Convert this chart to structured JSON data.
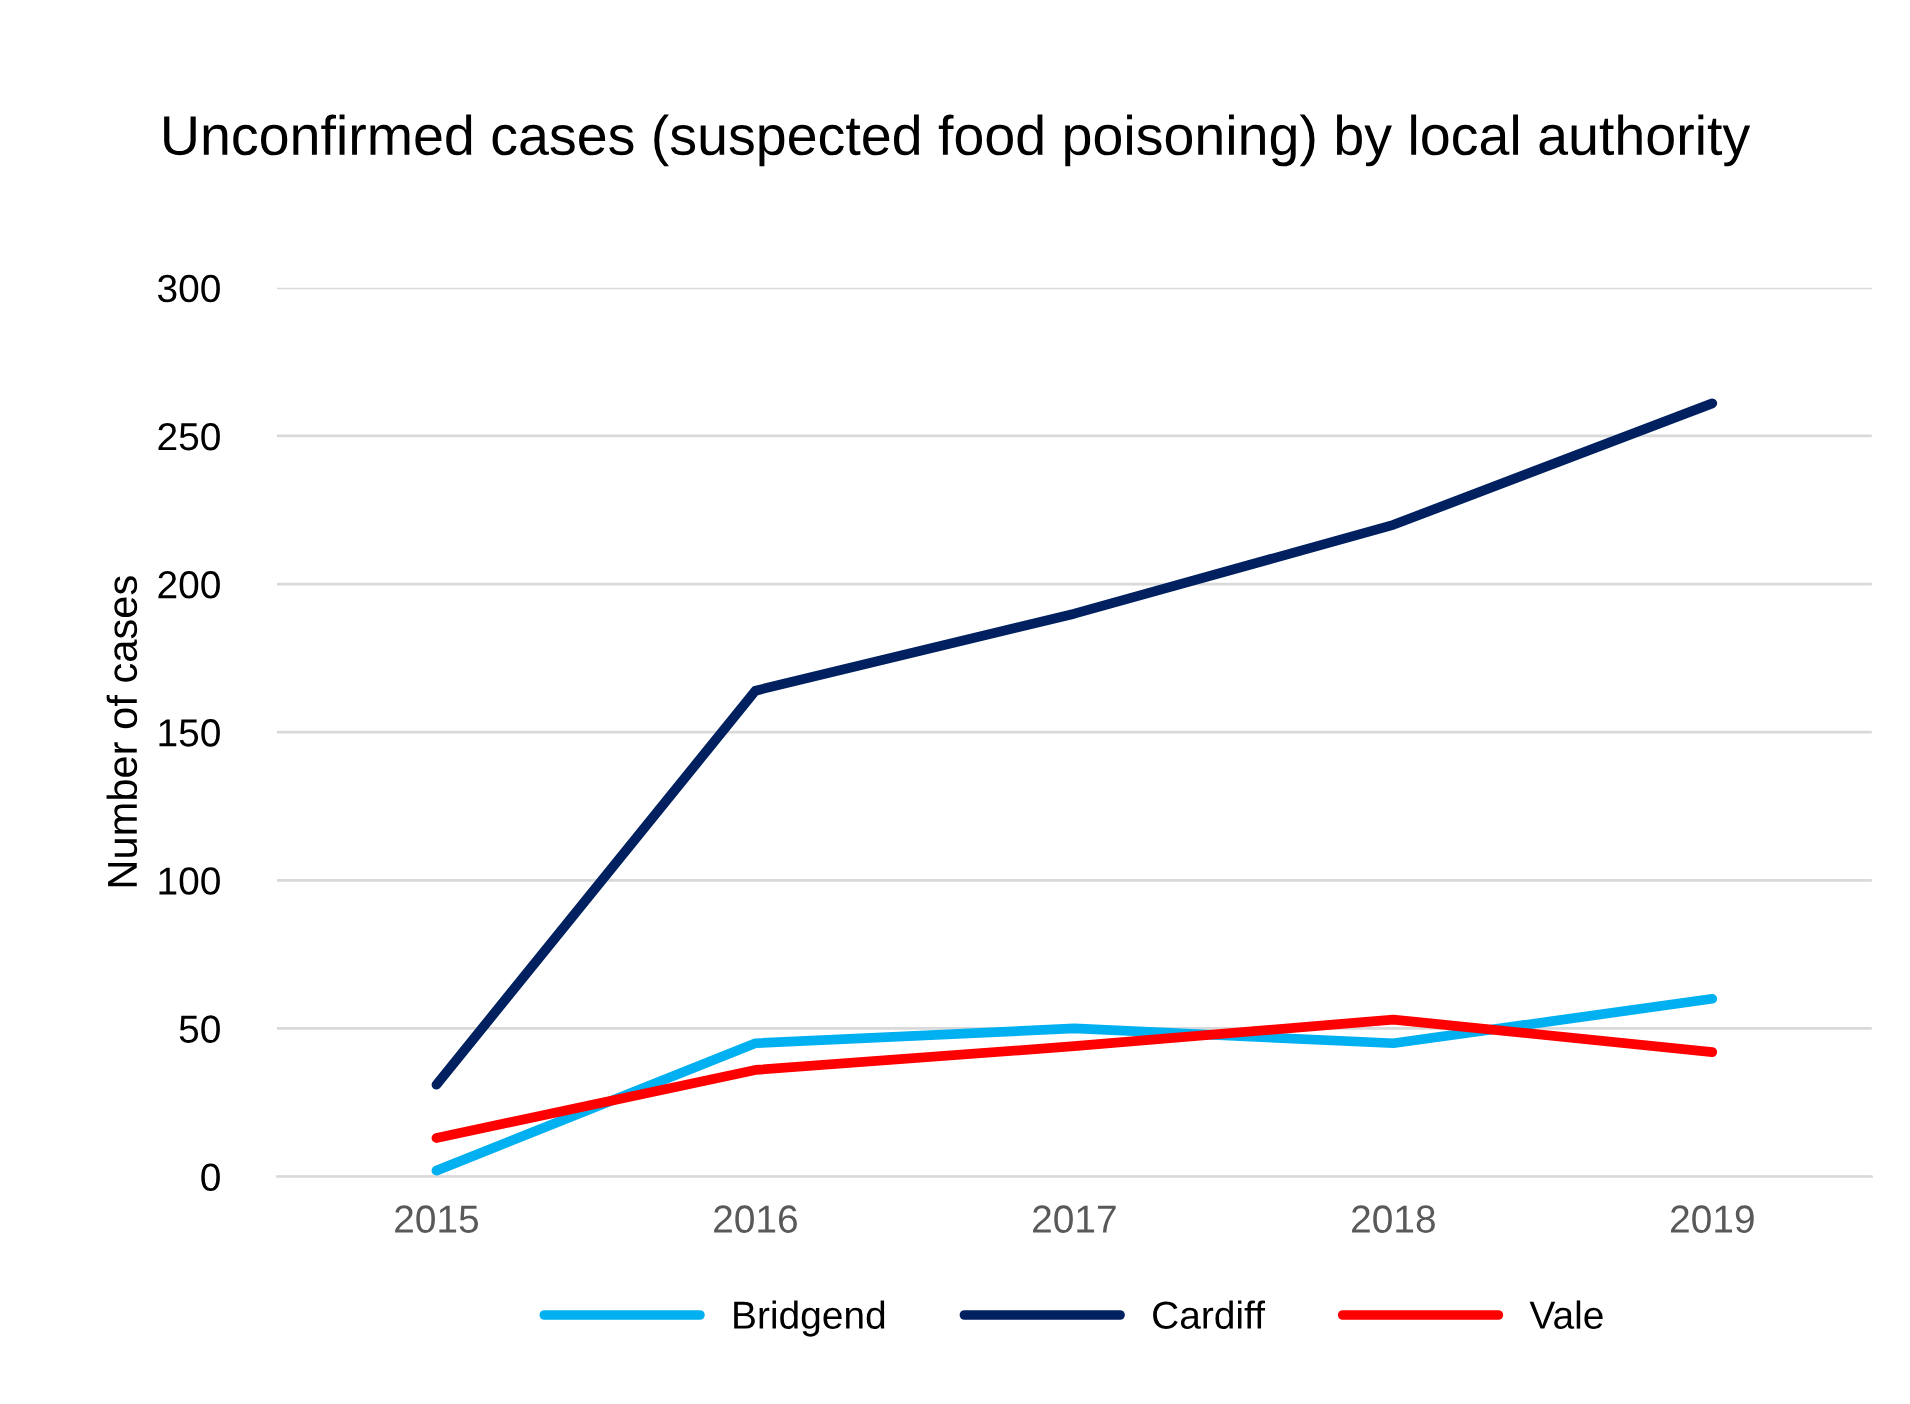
{
  "chart_data": {
    "type": "line",
    "title": "Unconfirmed cases (suspected food poisoning) by local authority",
    "ylabel": "Number of cases",
    "categories": [
      "2015",
      "2016",
      "2017",
      "2018",
      "2019"
    ],
    "series": [
      {
        "name": "Bridgend",
        "color": "#00b0f0",
        "values": [
          2,
          45,
          50,
          45,
          60
        ]
      },
      {
        "name": "Cardiff",
        "color": "#002060",
        "values": [
          31,
          164,
          190,
          220,
          261
        ]
      },
      {
        "name": "Vale",
        "color": "#ff0000",
        "values": [
          13,
          36,
          44,
          53,
          42
        ]
      }
    ],
    "ylim": [
      0,
      300
    ],
    "yticks": [
      0,
      50,
      100,
      150,
      200,
      250,
      300
    ],
    "grid": "y",
    "legend": "bottom",
    "marker": "none",
    "line_style": "solid"
  }
}
